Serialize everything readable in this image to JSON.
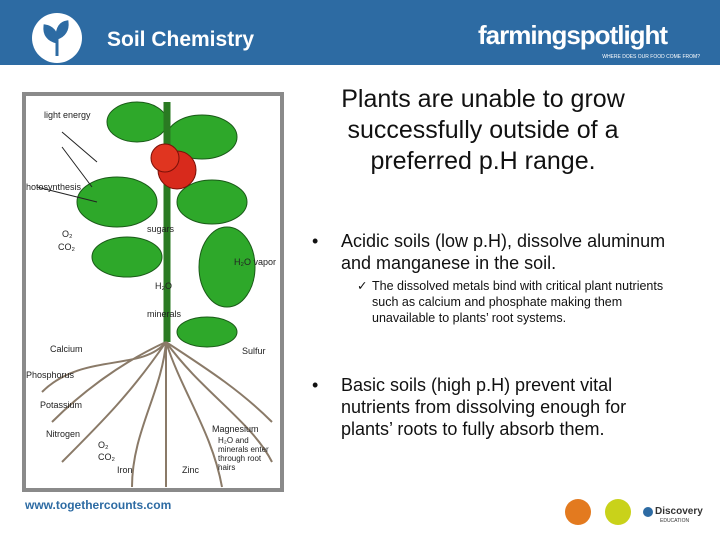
{
  "header": {
    "title": "Soil Chemistry",
    "brand": "farmingspotlight",
    "tagline": "WHERE DOES OUR FOOD COME FROM?"
  },
  "figure": {
    "labels": [
      "light energy",
      "Photosynthesis",
      "sugars",
      "O₂",
      "CO₂",
      "H₂O vapor",
      "H₂O",
      "minerals",
      "Calcium",
      "Sulfur",
      "Phosphorus",
      "Potassium",
      "Nitrogen",
      "Magnesium",
      "H₂O and minerals enter through root hairs",
      "O₂",
      "CO₂",
      "Iron",
      "Zinc"
    ]
  },
  "heading": "Plants are unable to grow successfully outside of a preferred p.H range.",
  "bullets": [
    {
      "text": "Acidic soils (low p.H), dissolve aluminum and manganese in the soil.",
      "subbullets": [
        "The dissolved metals bind with critical plant nutrients such as calcium and phosphate making them unavailable to plants’ root systems."
      ]
    },
    {
      "text": "Basic soils (high p.H) prevent vital nutrients from dissolving enough for plants’ roots to fully absorb them.",
      "subbullets": []
    }
  ],
  "footer": {
    "url": "www.togethercounts.com",
    "logo": "Discovery",
    "logo_sub": "EDUCATION"
  }
}
